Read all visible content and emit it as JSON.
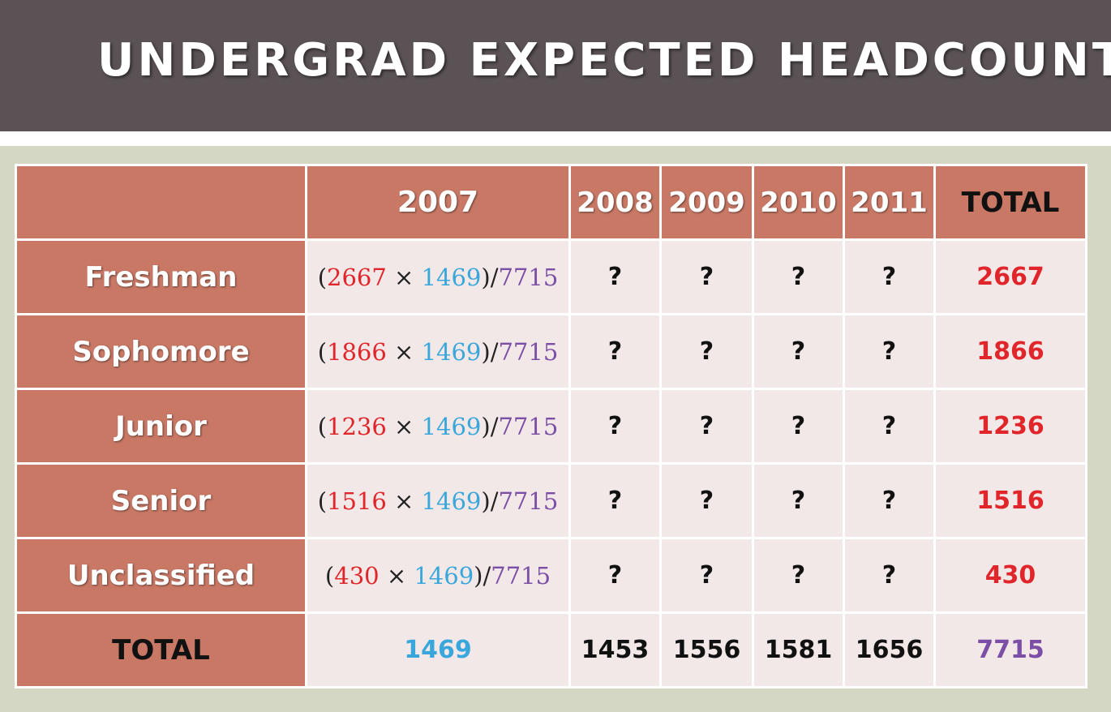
{
  "header": {
    "title": "UNDERGRAD EXPECTED HEADCOUNT"
  },
  "table": {
    "columns": [
      "2007",
      "2008",
      "2009",
      "2010",
      "2011",
      "TOTAL"
    ],
    "colors": {
      "class_total": "#e0262a",
      "year_total": "#3aa7dc",
      "grand_total": "#7b4fa6"
    },
    "rows": [
      {
        "label": "Freshman",
        "formula": [
          "(",
          2667,
          " × ",
          1469,
          ")/",
          7715
        ],
        "cells": [
          "?",
          "?",
          "?",
          "?"
        ],
        "total": 2667
      },
      {
        "label": "Sophomore",
        "formula": [
          "(",
          1866,
          " × ",
          1469,
          ")/",
          7715
        ],
        "cells": [
          "?",
          "?",
          "?",
          "?"
        ],
        "total": 1866
      },
      {
        "label": "Junior",
        "formula": [
          "(",
          1236,
          " × ",
          1469,
          ")/",
          7715
        ],
        "cells": [
          "?",
          "?",
          "?",
          "?"
        ],
        "total": 1236
      },
      {
        "label": "Senior",
        "formula": [
          "(",
          1516,
          " × ",
          1469,
          ")/",
          7715
        ],
        "cells": [
          "?",
          "?",
          "?",
          "?"
        ],
        "total": 1516
      },
      {
        "label": "Unclassified",
        "formula": [
          "(",
          430,
          " × ",
          1469,
          ")/",
          7715
        ],
        "cells": [
          "?",
          "?",
          "?",
          "?"
        ],
        "total": 430
      }
    ],
    "total_row": {
      "label": "TOTAL",
      "cells": [
        1469,
        1453,
        1556,
        1581,
        1656,
        7715
      ]
    }
  }
}
